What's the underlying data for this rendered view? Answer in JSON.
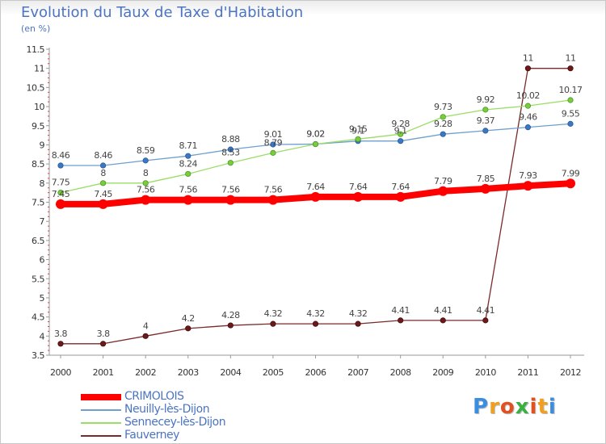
{
  "chart_data": {
    "type": "line",
    "title": "Evolution du Taux de Taxe d'Habitation",
    "subtitle": "(en %)",
    "x": [
      "2000",
      "2001",
      "2002",
      "2003",
      "2004",
      "2005",
      "2006",
      "2007",
      "2008",
      "2009",
      "2010",
      "2011",
      "2012"
    ],
    "y_ticks": [
      "3.5",
      "4",
      "4.5",
      "5",
      "5.5",
      "6",
      "6.5",
      "7",
      "7.5",
      "8",
      "8.5",
      "9",
      "9.5",
      "10",
      "10.5",
      "11",
      "11.5"
    ],
    "ylim": [
      3.5,
      11.5
    ],
    "grid": false,
    "legend_position": "bottom-left",
    "series": [
      {
        "name": "CRIMOLOIS",
        "color": "#ff0000",
        "values": [
          7.45,
          7.45,
          7.56,
          7.56,
          7.56,
          7.56,
          7.64,
          7.64,
          7.64,
          7.79,
          7.85,
          7.93,
          7.99
        ],
        "labels": [
          "7.45",
          "7.45",
          "7.56",
          "7.56",
          "7.56",
          "7.56",
          "7.64",
          "7.64",
          "7.64",
          "7.79",
          "7.85",
          "7.93",
          "7.99"
        ]
      },
      {
        "name": "Neuilly-lès-Dijon",
        "color": "#6e9fce",
        "values": [
          8.46,
          8.46,
          8.59,
          8.71,
          8.88,
          9.01,
          9.02,
          9.1,
          9.1,
          9.28,
          9.37,
          9.46,
          9.55
        ],
        "labels": [
          "8.46",
          "8.46",
          "8.59",
          "8.71",
          "8.88",
          "9.01",
          "9.02",
          "9.1",
          "9.1",
          "9.28",
          "9.37",
          "9.46",
          "9.55"
        ]
      },
      {
        "name": "Sennecey-lès-Dijon",
        "color": "#99dd66",
        "values": [
          7.75,
          8,
          8,
          8.24,
          8.53,
          8.79,
          9.02,
          9.15,
          9.28,
          9.73,
          9.92,
          10.02,
          10.17
        ],
        "labels": [
          "7.75",
          "8",
          "8",
          "8.24",
          "8.53",
          "8.79",
          "9.02",
          "9.15",
          "9.28",
          "9.73",
          "9.92",
          "10.02",
          "10.17"
        ]
      },
      {
        "name": "Fauverney",
        "color": "#7a2a2a",
        "values": [
          3.8,
          3.8,
          4,
          4.2,
          4.28,
          4.32,
          4.32,
          4.32,
          4.41,
          4.41,
          4.41,
          11,
          11
        ],
        "labels": [
          "3.8",
          "3.8",
          "4",
          "4.2",
          "4.28",
          "4.32",
          "4.32",
          "4.32",
          "4.41",
          "4.41",
          "4.41",
          "11",
          "11"
        ]
      }
    ]
  },
  "logo": {
    "letters": [
      "P",
      "r",
      "o",
      "x",
      "i",
      "t",
      "i"
    ],
    "colors": [
      "#3a8de0",
      "#f0a020",
      "#e05020",
      "#3ab040",
      "#e05020",
      "#f0a020",
      "#3a8de0"
    ]
  }
}
